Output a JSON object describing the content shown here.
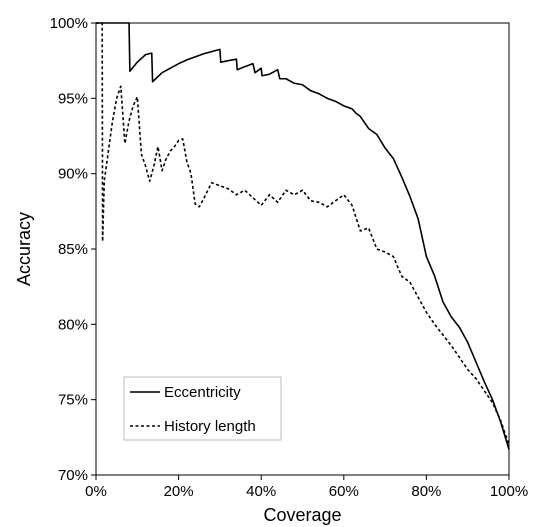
{
  "chart_data": {
    "type": "line",
    "title": "",
    "xlabel": "Coverage",
    "ylabel": "Accuracy",
    "xlim": [
      0,
      100
    ],
    "ylim": [
      70,
      100
    ],
    "xticks": [
      0,
      20,
      40,
      60,
      80,
      100
    ],
    "yticks": [
      70,
      75,
      80,
      85,
      90,
      95,
      100
    ],
    "xtick_labels": [
      "0%",
      "20%",
      "40%",
      "60%",
      "80%",
      "100%"
    ],
    "ytick_labels": [
      "70%",
      "75%",
      "80%",
      "85%",
      "90%",
      "95%",
      "100%"
    ],
    "grid": false,
    "legend": {
      "position": "bottom-left",
      "entries": [
        "Eccentricity",
        "History length"
      ]
    },
    "series": [
      {
        "name": "Eccentricity",
        "style": "solid",
        "x": [
          0,
          2,
          4,
          6,
          8,
          8.2,
          10,
          12,
          13.5,
          13.7,
          16,
          18,
          20,
          22,
          24,
          26,
          28,
          30,
          30.2,
          32,
          34,
          34.2,
          36,
          38,
          38.5,
          40,
          40.2,
          42,
          44,
          44.5,
          46,
          48,
          50,
          52,
          54,
          56,
          58,
          60,
          62,
          63,
          64,
          65,
          66,
          68,
          70,
          72,
          74,
          76,
          78,
          80,
          82,
          84,
          86,
          88,
          90,
          92,
          94,
          96,
          98,
          100
        ],
        "y": [
          100,
          100,
          100,
          100,
          100,
          96.8,
          97.4,
          97.9,
          98.0,
          96.1,
          96.7,
          97.0,
          97.3,
          97.55,
          97.75,
          97.95,
          98.1,
          98.25,
          97.4,
          97.5,
          97.6,
          96.9,
          97.1,
          97.3,
          96.7,
          97.0,
          96.5,
          96.6,
          96.9,
          96.3,
          96.3,
          96.0,
          95.9,
          95.5,
          95.3,
          95.0,
          94.8,
          94.5,
          94.3,
          94.0,
          93.8,
          93.4,
          93.0,
          92.6,
          91.7,
          91.0,
          89.8,
          88.5,
          87.0,
          84.5,
          83.2,
          81.5,
          80.5,
          79.8,
          78.8,
          77.5,
          76.2,
          75.0,
          73.5,
          71.7
        ]
      },
      {
        "name": "History length",
        "style": "dashed",
        "x": [
          0,
          1.5,
          1.6,
          1.8,
          2,
          3,
          4,
          5,
          6,
          7,
          8,
          9,
          10,
          11,
          12,
          13,
          14,
          15,
          16,
          17,
          18,
          19,
          20,
          21,
          22,
          23,
          24,
          25,
          26,
          28,
          30,
          32,
          34,
          36,
          38,
          40,
          42,
          44,
          46,
          48,
          50,
          52,
          54,
          56,
          58,
          60,
          62,
          64,
          66,
          68,
          70,
          72,
          74,
          76,
          78,
          80,
          82,
          84,
          86,
          88,
          90,
          92,
          94,
          96,
          98,
          100
        ],
        "y": [
          100,
          100,
          85.5,
          87.5,
          89.5,
          91.5,
          93.5,
          95.0,
          95.8,
          92.0,
          93.5,
          94.5,
          95.1,
          91.3,
          90.5,
          89.5,
          90.5,
          91.8,
          90.2,
          91.0,
          91.5,
          91.8,
          92.2,
          92.3,
          90.8,
          90.0,
          88.0,
          87.8,
          88.3,
          89.4,
          89.2,
          89.0,
          88.6,
          88.9,
          88.4,
          87.9,
          88.6,
          88.1,
          88.9,
          88.6,
          88.9,
          88.2,
          88.1,
          87.8,
          88.2,
          88.6,
          87.9,
          86.2,
          86.4,
          85.0,
          84.8,
          84.5,
          83.2,
          82.8,
          81.8,
          80.8,
          80.0,
          79.3,
          78.6,
          77.8,
          77.0,
          76.4,
          75.6,
          74.8,
          73.6,
          72.0
        ]
      }
    ]
  }
}
